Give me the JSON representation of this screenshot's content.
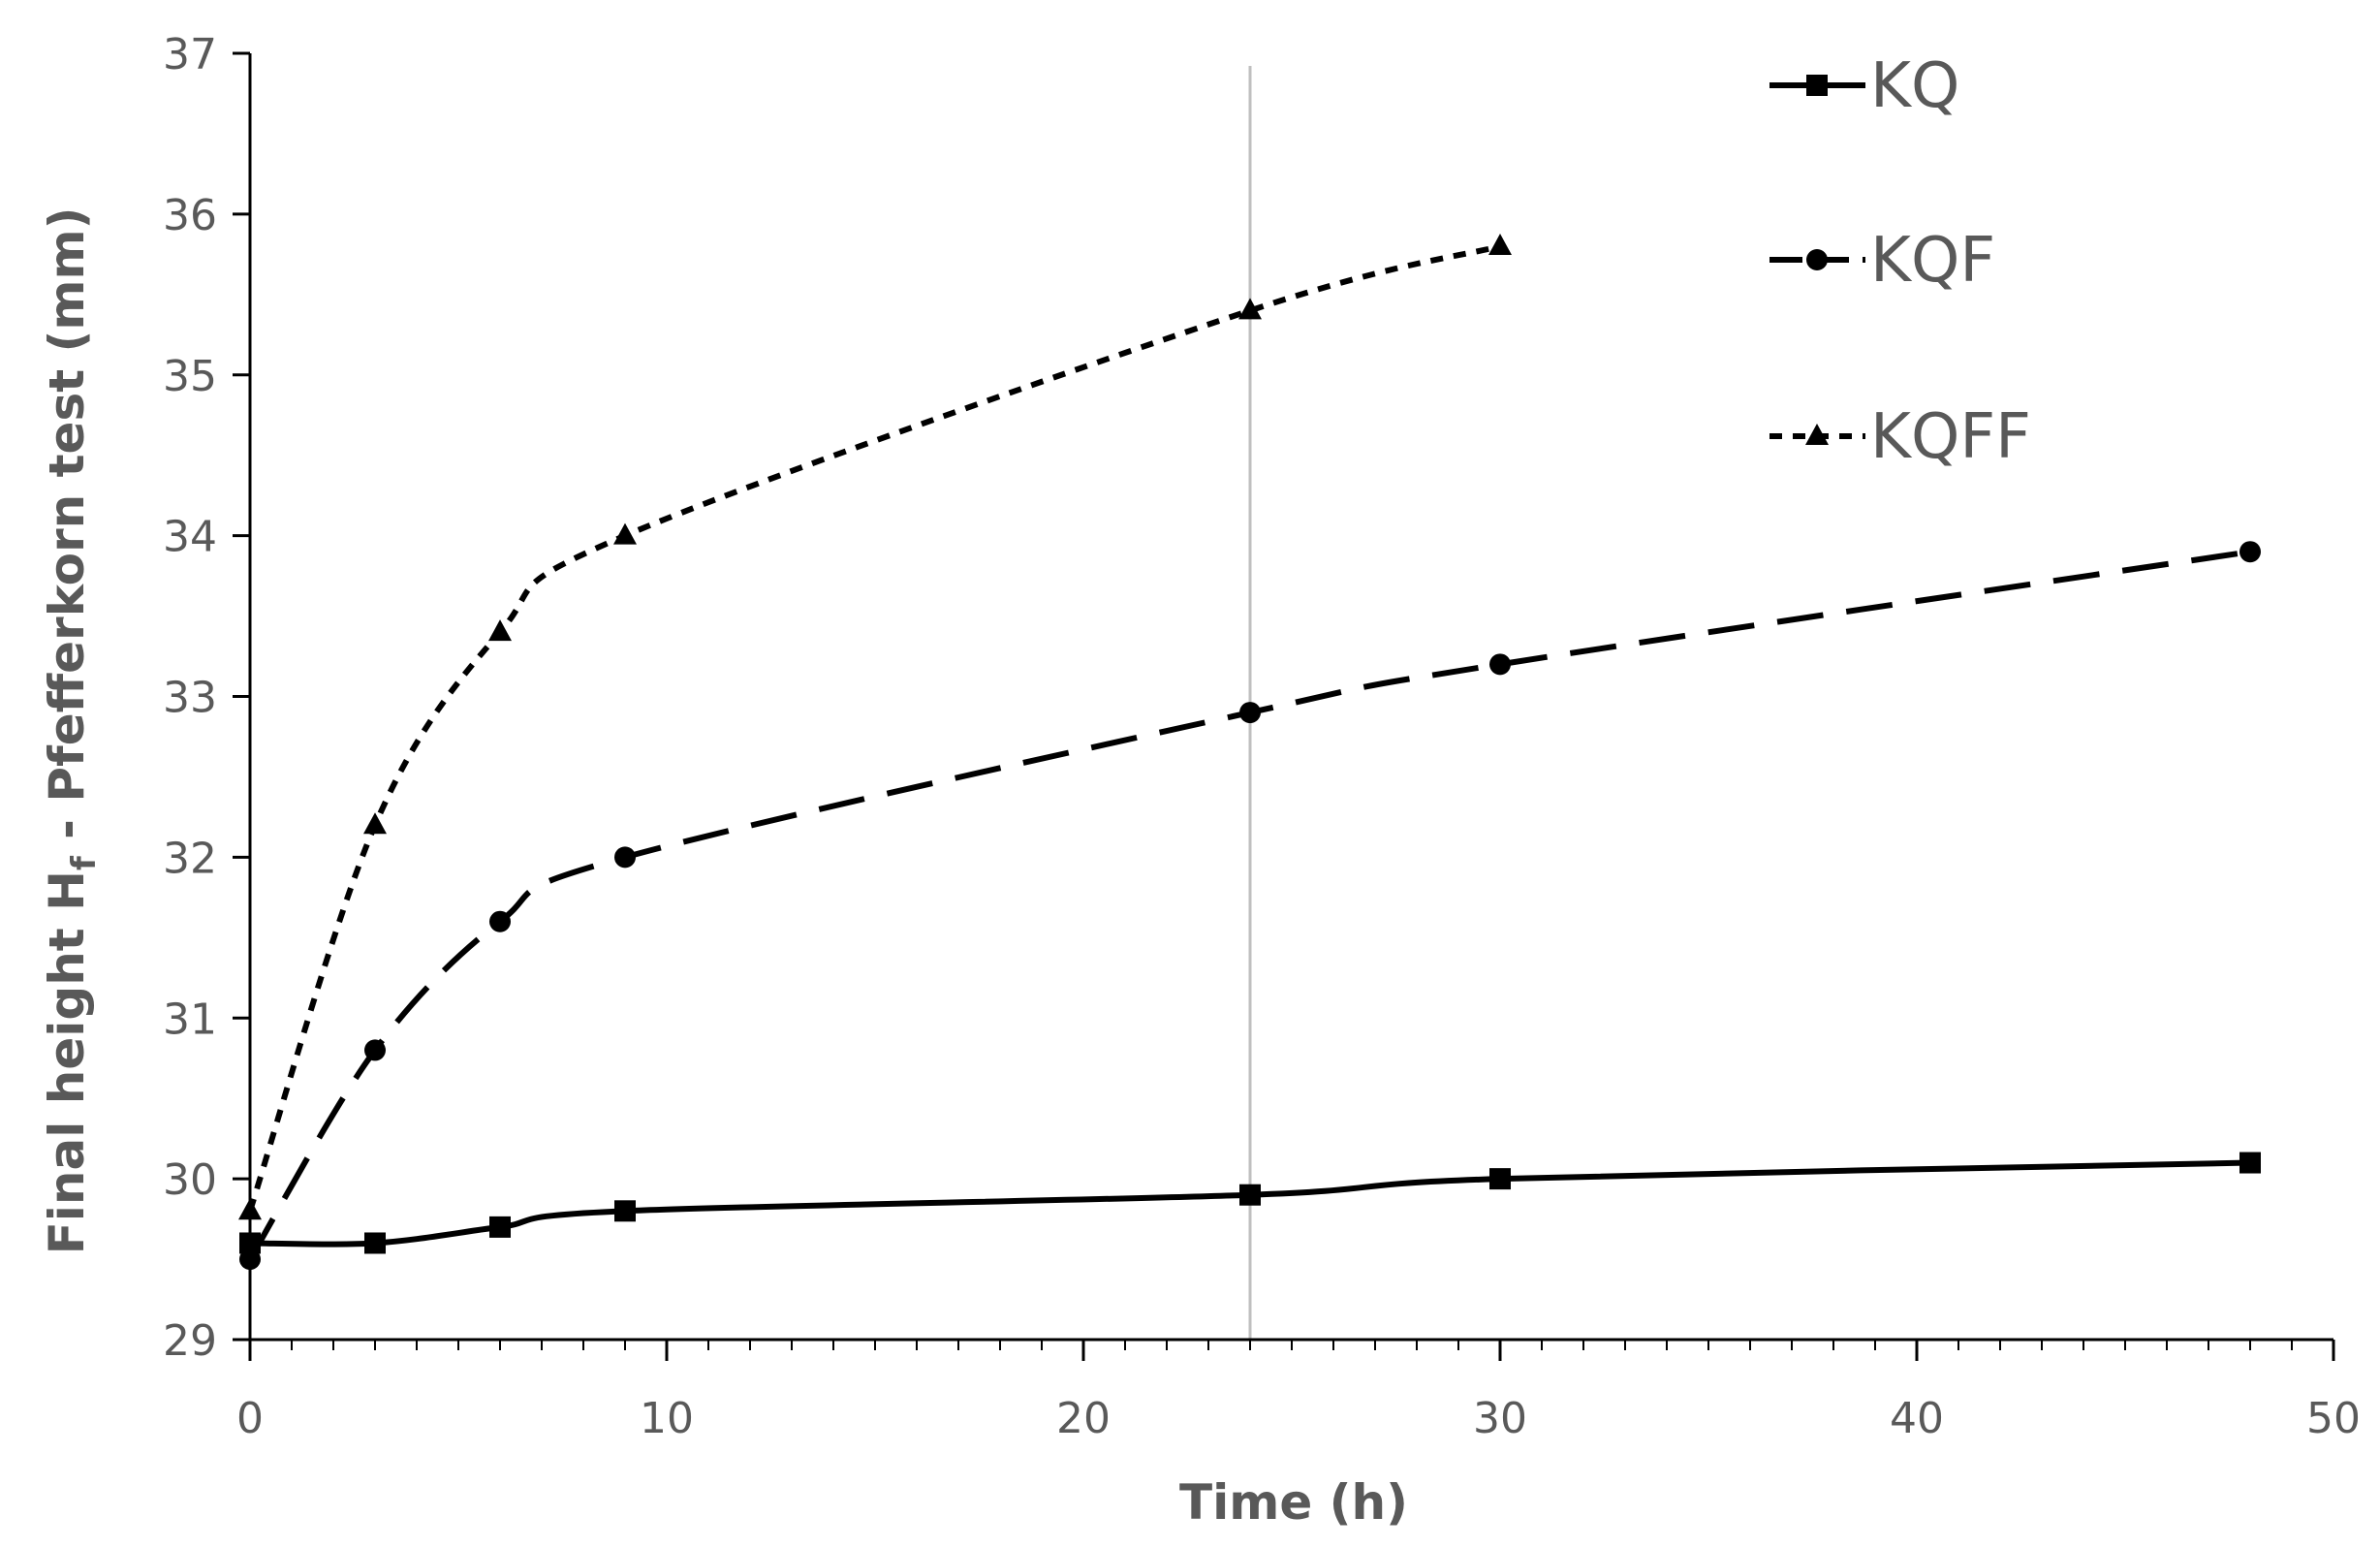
{
  "chart_data": {
    "type": "line",
    "xlabel": "Time (h)",
    "ylabel_main": "Final height H",
    "ylabel_sub": "f",
    "ylabel_rest": " - Pfefferkorn test (mm)",
    "xlim": [
      0,
      50
    ],
    "ylim": [
      29,
      37
    ],
    "x_ticks": [
      "0",
      "10",
      "20",
      "30",
      "40",
      "50"
    ],
    "y_ticks": [
      "29",
      "30",
      "31",
      "32",
      "33",
      "34",
      "35",
      "36",
      "37"
    ],
    "reference_line_x": 24,
    "grid": false,
    "legend_position": "top-right",
    "series": [
      {
        "name": "KQ",
        "marker": "square",
        "line_style": "solid",
        "x": [
          0,
          3,
          6,
          9,
          24,
          30,
          48
        ],
        "y": [
          29.6,
          29.6,
          29.7,
          29.8,
          29.9,
          30.0,
          30.1
        ]
      },
      {
        "name": "KQF",
        "marker": "circle",
        "line_style": "long-dash",
        "x": [
          0,
          3,
          6,
          9,
          24,
          30,
          48
        ],
        "y": [
          29.5,
          30.8,
          31.6,
          32.0,
          32.9,
          33.2,
          33.9
        ]
      },
      {
        "name": "KQFF",
        "marker": "triangle",
        "line_style": "short-dash",
        "x": [
          0,
          3,
          6,
          9,
          24,
          30
        ],
        "y": [
          29.8,
          32.2,
          33.4,
          34.0,
          35.4,
          35.8
        ]
      }
    ]
  }
}
